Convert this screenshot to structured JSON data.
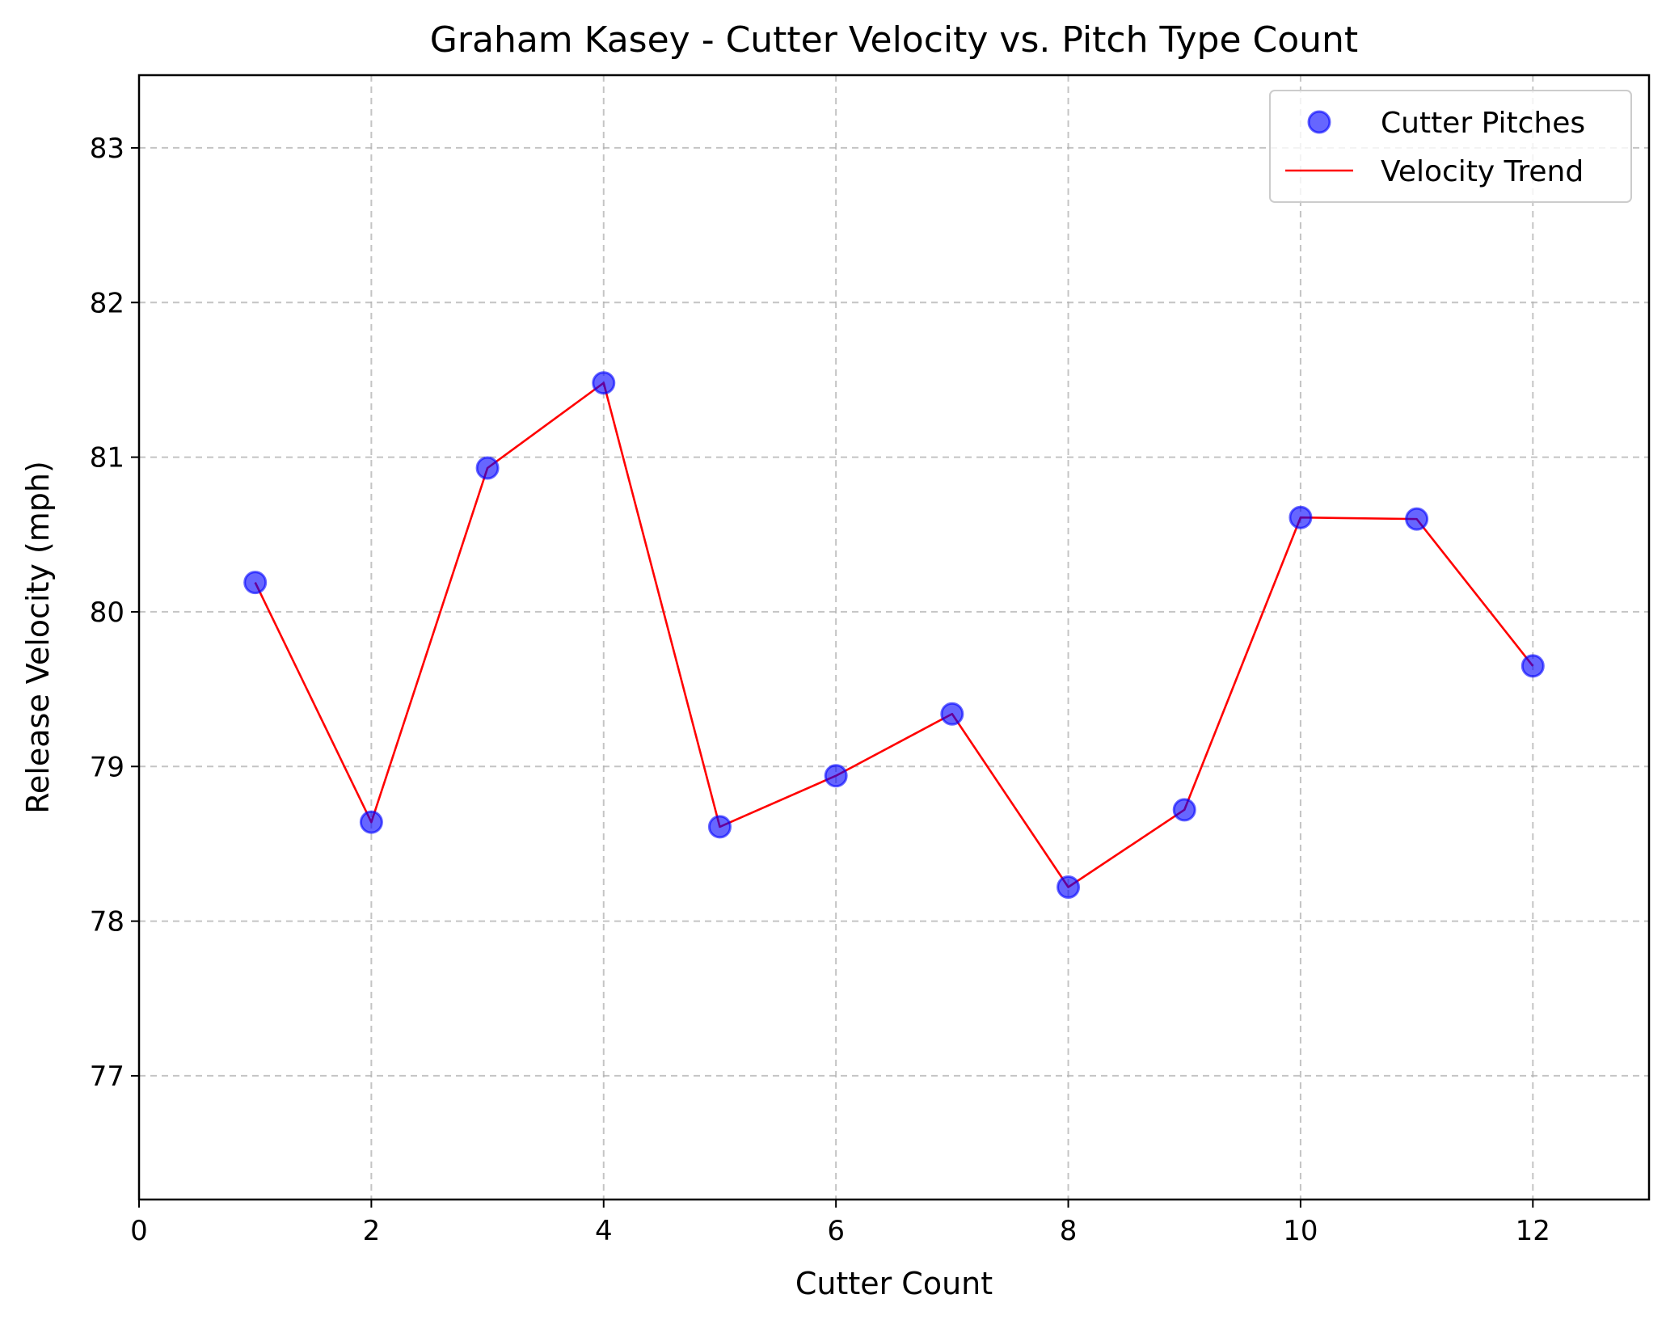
{
  "chart_data": {
    "type": "scatter",
    "title": "Graham Kasey - Cutter Velocity vs. Pitch Type Count",
    "xlabel": "Cutter Count",
    "ylabel": "Release Velocity (mph)",
    "xlim": [
      0,
      13
    ],
    "ylim": [
      76.2,
      83.47
    ],
    "xticks": [
      0,
      2,
      4,
      6,
      8,
      10,
      12
    ],
    "yticks": [
      77,
      78,
      79,
      80,
      81,
      82,
      83
    ],
    "grid": true,
    "legend_position": "top-right",
    "series": [
      {
        "name": "Cutter Pitches",
        "kind": "scatter",
        "color": "#0000ff",
        "x": [
          1,
          2,
          3,
          4,
          5,
          6,
          7,
          8,
          9,
          10,
          11,
          12
        ],
        "y": [
          80.19,
          78.64,
          80.93,
          81.48,
          78.61,
          78.94,
          79.34,
          78.22,
          78.72,
          80.61,
          80.6,
          79.65
        ]
      },
      {
        "name": "Velocity Trend",
        "kind": "line",
        "color": "#ff0000",
        "x": [
          1,
          2,
          3,
          4,
          5,
          6,
          7,
          8,
          9,
          10,
          11,
          12
        ],
        "y": [
          80.19,
          78.64,
          80.93,
          81.48,
          78.61,
          78.94,
          79.34,
          78.22,
          78.72,
          80.61,
          80.6,
          79.65
        ]
      }
    ]
  }
}
